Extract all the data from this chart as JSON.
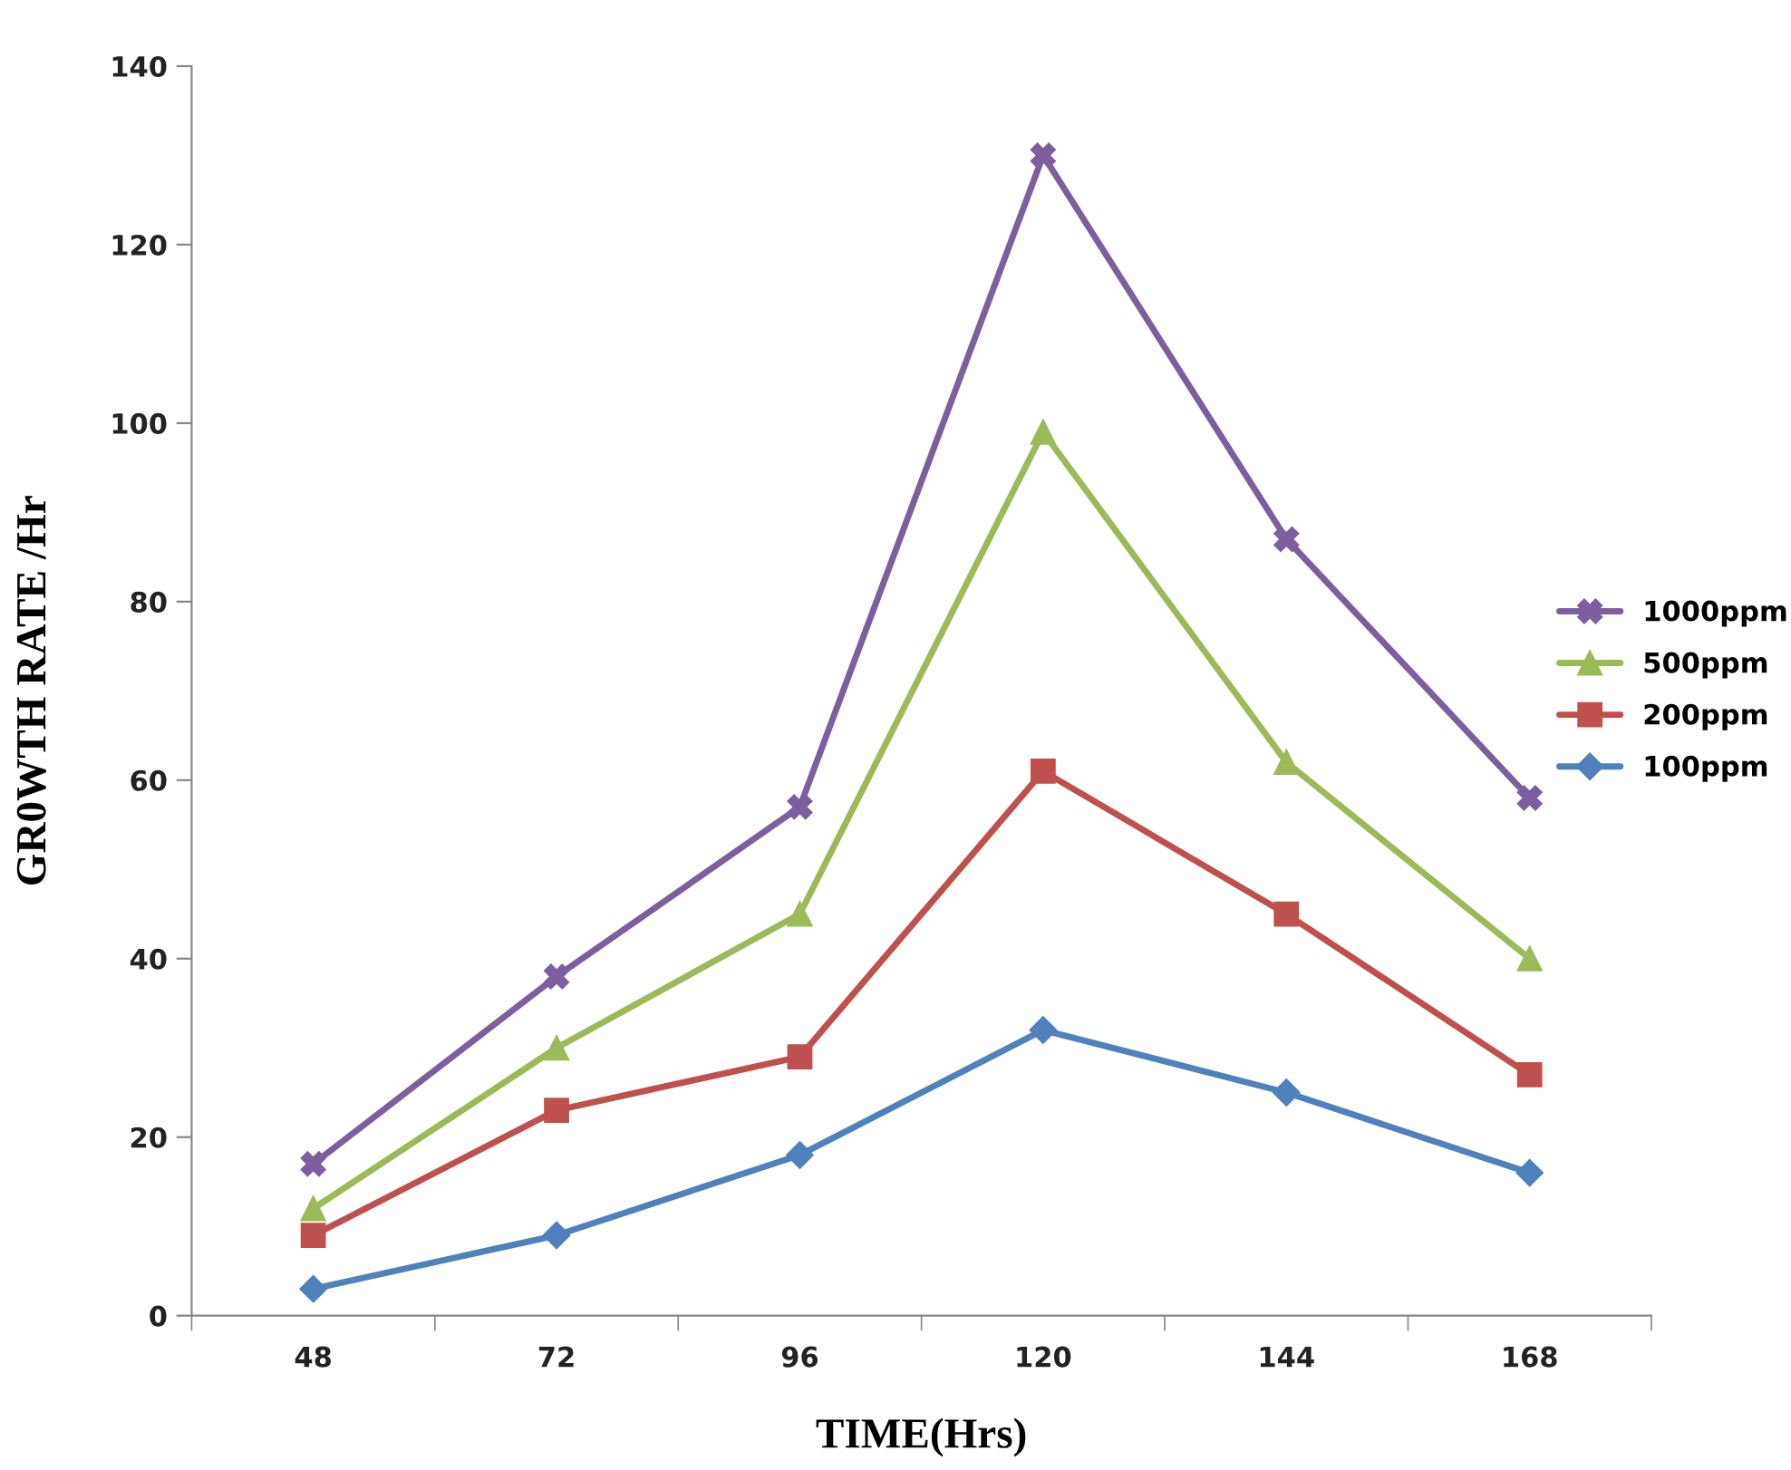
{
  "chart_data": {
    "type": "line",
    "xlabel": "TIME(Hrs)",
    "ylabel": "GR0WTH RATE /Hr",
    "categories": [
      "48",
      "72",
      "96",
      "120",
      "144",
      "168"
    ],
    "series": [
      {
        "name": "1000ppm",
        "color": "#7d5fa0",
        "marker": "cross",
        "values": [
          17,
          38,
          57,
          130,
          87,
          58
        ]
      },
      {
        "name": "500ppm",
        "color": "#9bbb59",
        "marker": "triangle",
        "values": [
          12,
          30,
          45,
          99,
          62,
          40
        ]
      },
      {
        "name": "200ppm",
        "color": "#c0504d",
        "marker": "square",
        "values": [
          9,
          23,
          29,
          61,
          45,
          27
        ]
      },
      {
        "name": "100ppm",
        "color": "#4f81bd",
        "marker": "diamond",
        "values": [
          3,
          9,
          18,
          32,
          25,
          16
        ]
      }
    ],
    "ylim": [
      0,
      140
    ],
    "yticks": [
      0,
      20,
      40,
      60,
      80,
      100,
      120,
      140
    ],
    "grid": false,
    "legend": "right",
    "line_style": "solid"
  }
}
